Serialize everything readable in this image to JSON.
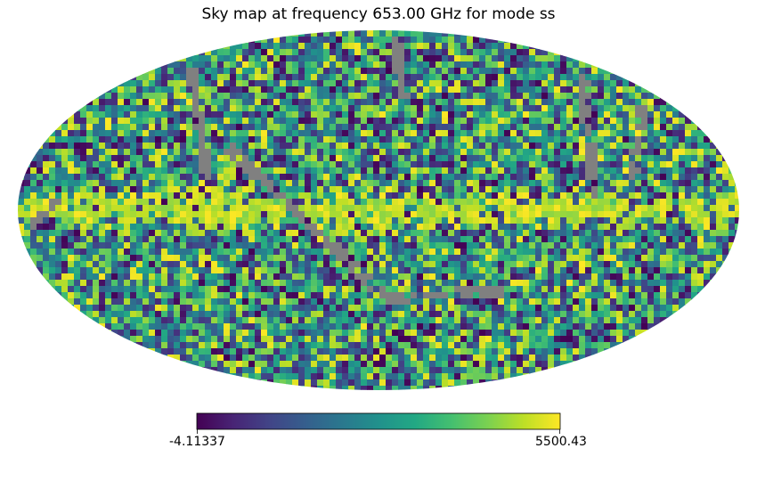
{
  "chart_data": {
    "type": "heatmap",
    "projection": "mollweide",
    "title": "Sky map at frequency 653.00 GHz for mode ss",
    "colormap": "viridis",
    "colormap_stops": [
      "#440154",
      "#482475",
      "#414487",
      "#355f8d",
      "#2a788e",
      "#21918c",
      "#22a884",
      "#44bf70",
      "#7ad151",
      "#bddf26",
      "#fde725"
    ],
    "masked_color": "#808080",
    "colorbar": {
      "min_label": "-4.11337",
      "max_label": "5500.43",
      "vmin": -4.11337,
      "vmax": 5500.43,
      "orientation": "horizontal"
    },
    "features": {
      "galactic_plane_band": "bright yellow band along equator",
      "masked_regions": "grey diagonal stripes"
    }
  }
}
